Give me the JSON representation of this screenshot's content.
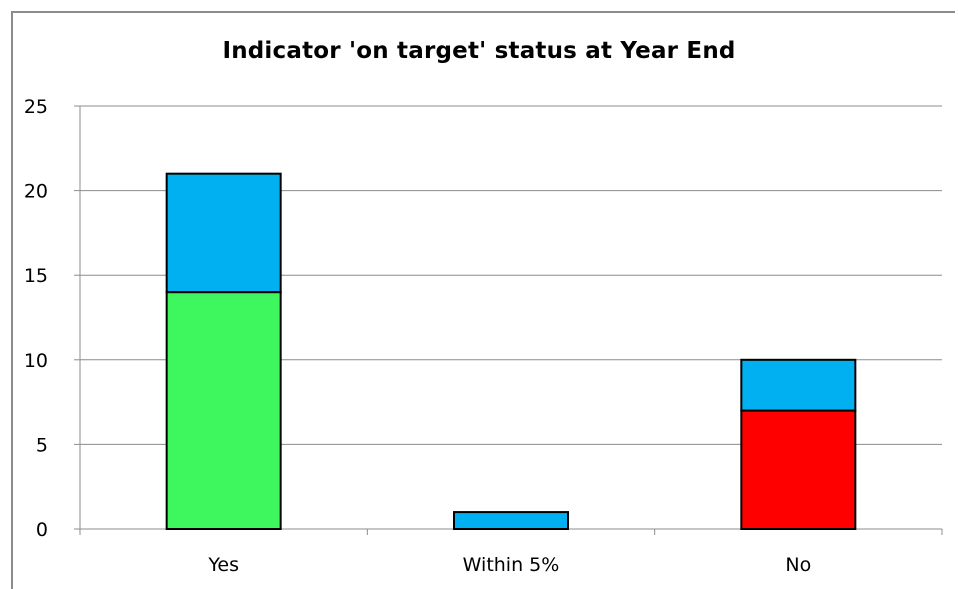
{
  "chart_data": {
    "type": "bar",
    "stacked": true,
    "title": "Indicator 'on target' status at Year End",
    "xlabel": "",
    "ylabel": "",
    "categories": [
      "Yes",
      "Within 5%",
      "No"
    ],
    "series": [
      {
        "values": [
          14,
          0,
          7
        ],
        "colors": [
          "#3ef75e",
          "#3ef75e",
          "#ff0000"
        ]
      },
      {
        "values": [
          7,
          1,
          3
        ],
        "colors": [
          "#00b0f0",
          "#00b0f0",
          "#00b0f0"
        ]
      }
    ],
    "ylim": [
      0,
      25
    ],
    "yticks": [
      0,
      5,
      10,
      15,
      20,
      25
    ],
    "grid": true,
    "legend": "none"
  }
}
